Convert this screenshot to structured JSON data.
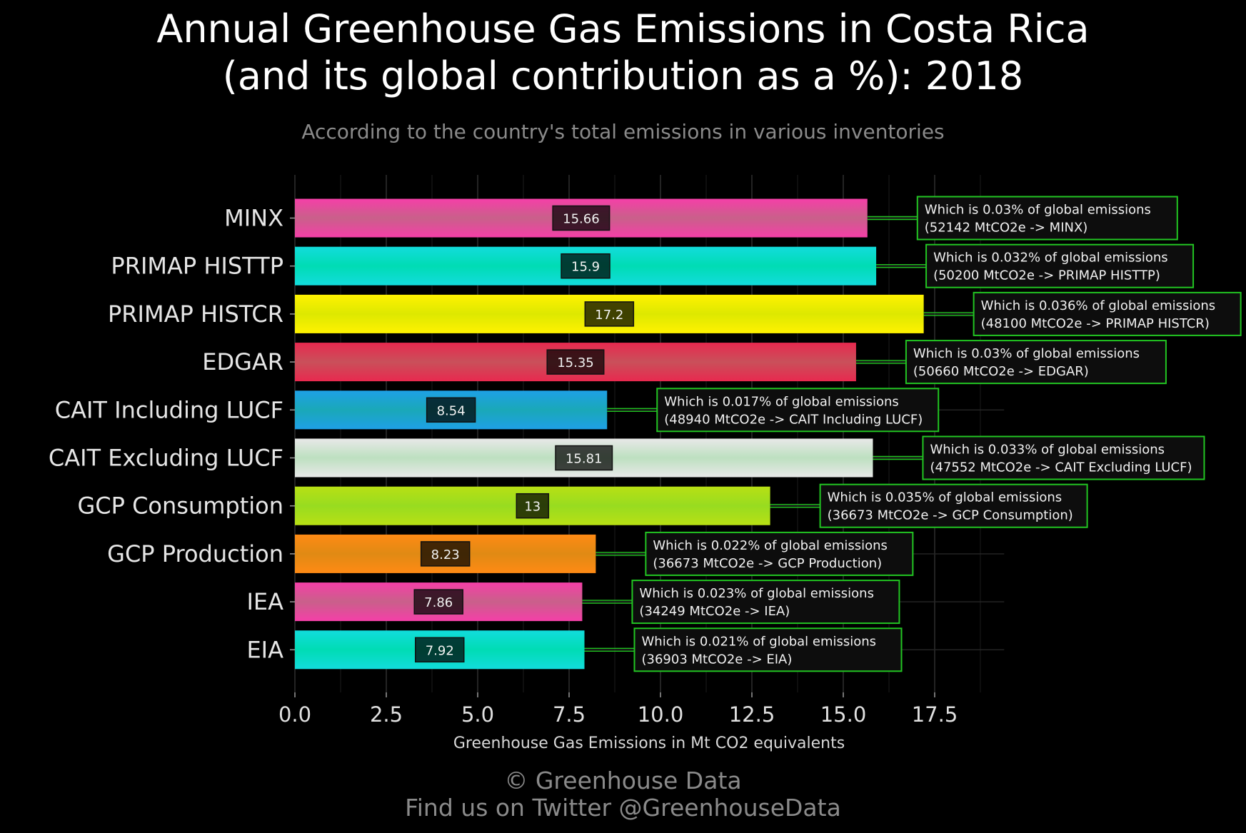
{
  "header": {
    "title_line1": "Annual Greenhouse Gas Emissions in Costa Rica",
    "title_line2": "(and its global contribution as a %): 2018",
    "subtitle": "According to the country's total emissions in various inventories"
  },
  "footer": {
    "copyright": "© Greenhouse Data",
    "twitter": "Find us on Twitter @GreenhouseData"
  },
  "chart_data": {
    "type": "bar",
    "orientation": "horizontal",
    "xlabel": "Greenhouse Gas Emissions in Mt CO2 equivalents",
    "xlim": [
      0,
      19.4
    ],
    "x_ticks": [
      "0.0",
      "2.5",
      "5.0",
      "7.5",
      "10.0",
      "12.5",
      "15.0",
      "17.5"
    ],
    "x_tick_values": [
      0,
      2.5,
      5,
      7.5,
      10,
      12.5,
      15,
      17.5
    ],
    "grid": true,
    "categories": [
      "MINX",
      "PRIMAP HISTTP",
      "PRIMAP HISTCR",
      "EDGAR",
      "CAIT Including LUCF",
      "CAIT Excluding LUCF",
      "GCP Consumption",
      "GCP Production",
      "IEA",
      "EIA"
    ],
    "values": [
      15.66,
      15.9,
      17.2,
      15.35,
      8.54,
      15.81,
      13,
      8.23,
      7.86,
      7.92
    ],
    "value_labels": [
      "15.66",
      "15.9",
      "17.2",
      "15.35",
      "8.54",
      "15.81",
      "13",
      "8.23",
      "7.86",
      "7.92"
    ],
    "annotations": [
      {
        "line1": "Which is 0.03% of global emissions",
        "line2": "(52142 MtCO2e -> MINX)"
      },
      {
        "line1": "Which is 0.032% of global emissions",
        "line2": "(50200 MtCO2e -> PRIMAP HISTTP)"
      },
      {
        "line1": "Which is 0.036% of global emissions",
        "line2": "(48100 MtCO2e -> PRIMAP HISTCR)"
      },
      {
        "line1": "Which is 0.03% of global emissions",
        "line2": "(50660 MtCO2e -> EDGAR)"
      },
      {
        "line1": "Which is 0.017% of global emissions",
        "line2": "(48940 MtCO2e -> CAIT Including LUCF)"
      },
      {
        "line1": "Which is 0.033% of global emissions",
        "line2": "(47552 MtCO2e -> CAIT Excluding LUCF)"
      },
      {
        "line1": "Which is 0.035% of global emissions",
        "line2": "(36673 MtCO2e -> GCP Consumption)"
      },
      {
        "line1": "Which is 0.022% of global emissions",
        "line2": "(36673 MtCO2e -> GCP Production)"
      },
      {
        "line1": "Which is 0.023% of global emissions",
        "line2": "(34249 MtCO2e -> IEA)"
      },
      {
        "line1": "Which is 0.021% of global emissions",
        "line2": "(36903 MtCO2e -> EIA)"
      }
    ],
    "colors": [
      [
        "#f53fa8",
        "#c9608a"
      ],
      [
        "#12dcdc",
        "#00dcb4"
      ],
      [
        "#fff200",
        "#dde800"
      ],
      [
        "#e8294f",
        "#c9505a"
      ],
      [
        "#1ea0e6",
        "#1aa8b8"
      ],
      [
        "#e8e8e8",
        "#bde0c0"
      ],
      [
        "#b8e014",
        "#98dc20"
      ],
      [
        "#ff8a14",
        "#e08a14"
      ],
      [
        "#f53fa8",
        "#c9608a"
      ],
      [
        "#12dcdc",
        "#00dcb4"
      ]
    ],
    "annotation_box_color": "#22c522"
  }
}
